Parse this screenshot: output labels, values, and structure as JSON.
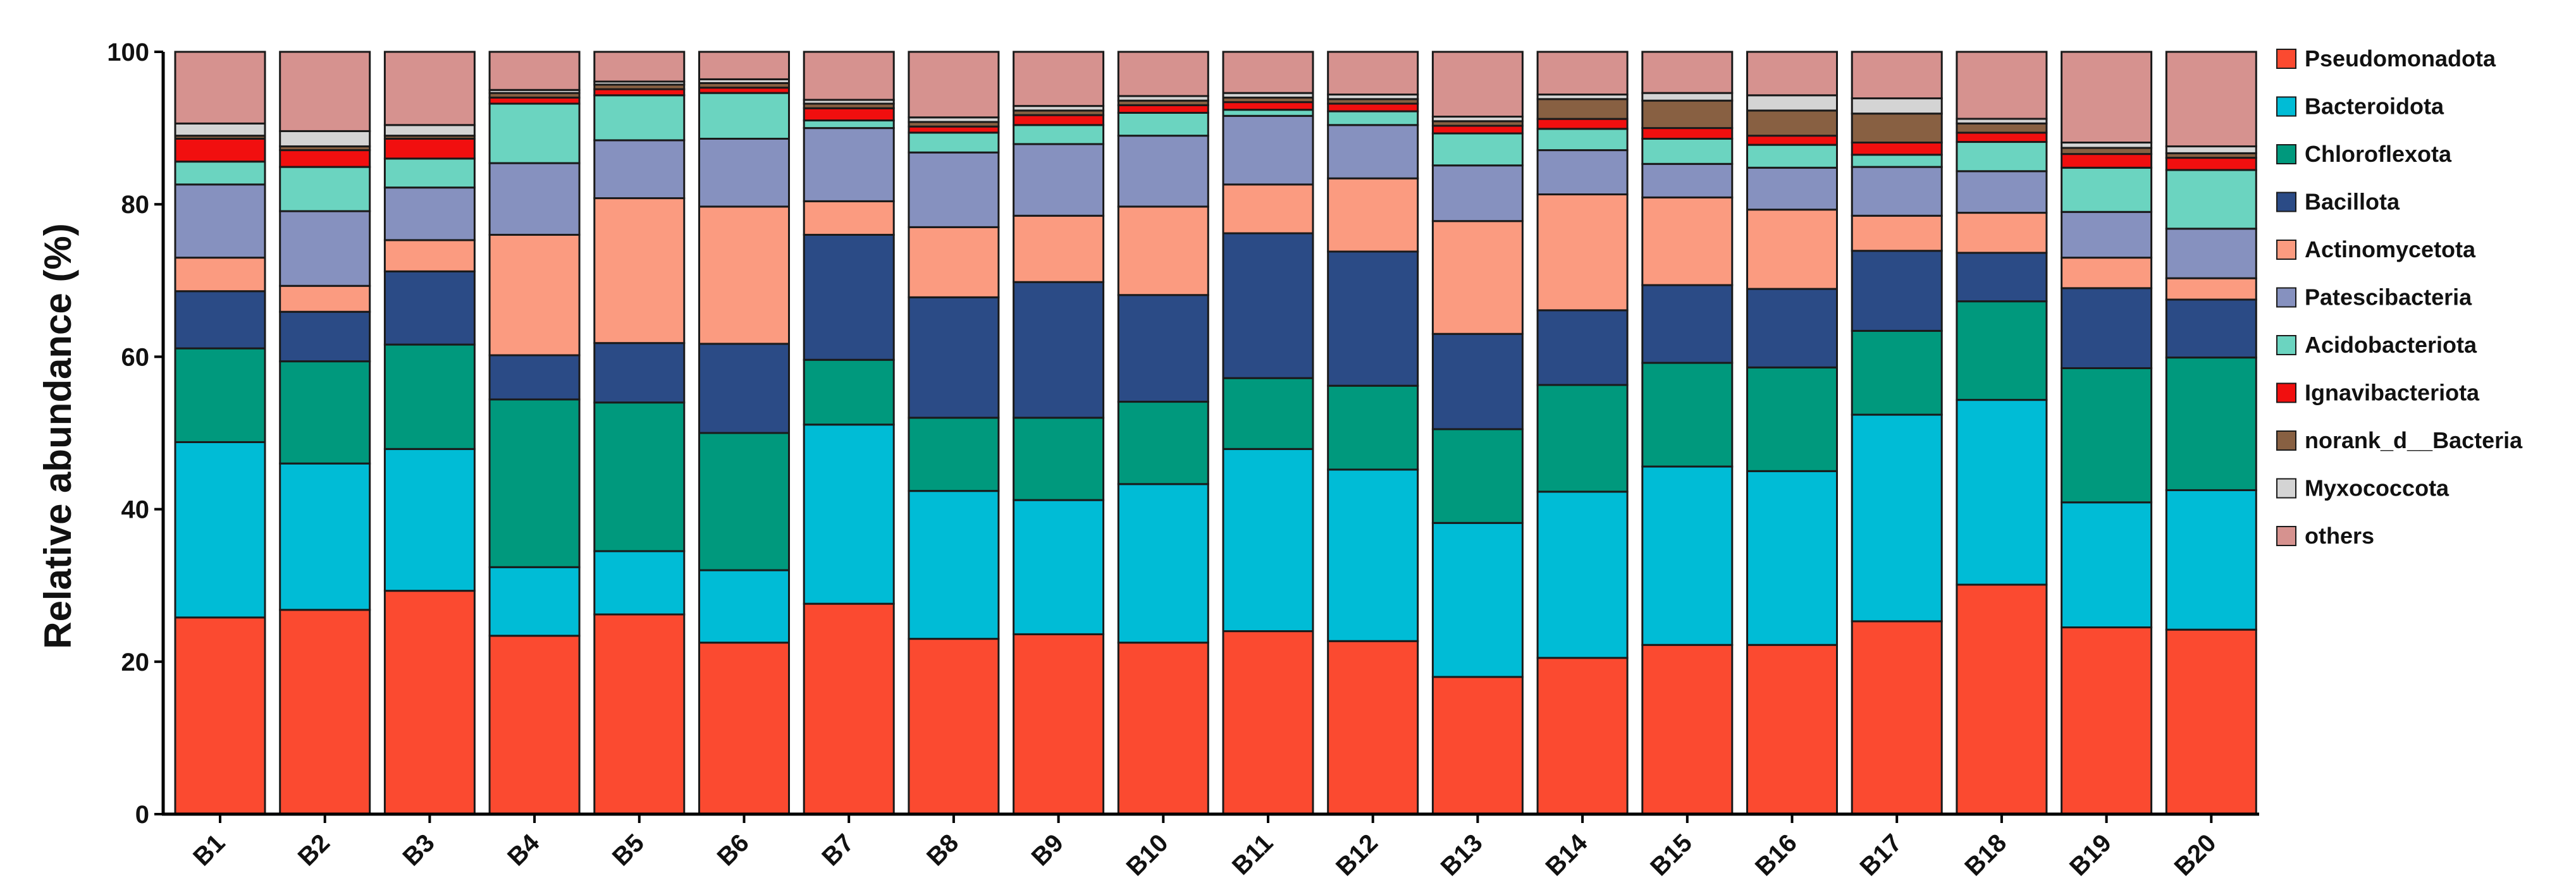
{
  "chart_data": {
    "type": "bar",
    "stacked": true,
    "title": "",
    "xlabel": "",
    "ylabel": "Relative abundance (%)",
    "ylim": [
      0,
      100
    ],
    "yticks": [
      "0",
      "20",
      "40",
      "60",
      "80",
      "100"
    ],
    "legend_position": "right",
    "categories": [
      "B1",
      "B2",
      "B3",
      "B4",
      "B5",
      "B6",
      "B7",
      "B8",
      "B9",
      "B10",
      "B11",
      "B12",
      "B13",
      "B14",
      "B15",
      "B16",
      "B17",
      "B18",
      "B19",
      "B20"
    ],
    "series": [
      {
        "name": "Pseudomonadota",
        "color": "#fb4a30",
        "values": [
          25.8,
          26.8,
          29.3,
          23.4,
          26.2,
          22.5,
          27.6,
          23.0,
          23.6,
          22.5,
          24.0,
          22.7,
          18.0,
          20.5,
          22.2,
          22.2,
          25.3,
          29.8,
          24.5,
          24.2
        ]
      },
      {
        "name": "Bacteroidota",
        "color": "#00bcd6",
        "values": [
          23.0,
          19.2,
          18.6,
          9.0,
          8.3,
          9.5,
          23.5,
          19.4,
          17.6,
          20.8,
          23.9,
          22.5,
          20.2,
          21.8,
          23.4,
          22.8,
          27.1,
          24.0,
          16.4,
          18.3
        ]
      },
      {
        "name": "Chloroflexota",
        "color": "#00997d",
        "values": [
          12.3,
          13.4,
          13.7,
          22.0,
          19.5,
          18.0,
          8.5,
          9.6,
          10.8,
          10.8,
          9.3,
          11.0,
          12.3,
          14.0,
          13.6,
          13.6,
          11.0,
          12.8,
          17.6,
          17.4
        ]
      },
      {
        "name": "Bacillota",
        "color": "#2b4b86",
        "values": [
          7.5,
          6.5,
          9.6,
          5.8,
          7.8,
          11.7,
          16.4,
          15.8,
          17.8,
          14.0,
          19.0,
          17.6,
          12.5,
          9.8,
          10.2,
          10.3,
          10.5,
          6.3,
          10.5,
          7.6
        ]
      },
      {
        "name": "Actinomycetota",
        "color": "#fb9b80",
        "values": [
          4.4,
          3.4,
          4.1,
          15.8,
          19.0,
          18.0,
          4.4,
          9.2,
          8.7,
          11.6,
          6.4,
          9.6,
          14.8,
          15.2,
          11.5,
          10.4,
          4.6,
          5.2,
          4.0,
          2.8
        ]
      },
      {
        "name": "Patescibacteria",
        "color": "#8691bf",
        "values": [
          9.6,
          9.8,
          6.9,
          9.4,
          7.6,
          8.9,
          9.6,
          9.8,
          9.4,
          9.3,
          9.0,
          7.0,
          7.3,
          5.8,
          4.4,
          5.5,
          6.4,
          5.4,
          6.0,
          6.5
        ]
      },
      {
        "name": "Acidobacteriota",
        "color": "#6bd4c0",
        "values": [
          3.0,
          5.8,
          3.8,
          7.8,
          5.9,
          6.0,
          1.0,
          2.6,
          2.5,
          3.0,
          0.8,
          1.8,
          4.2,
          2.8,
          3.3,
          3.0,
          1.6,
          3.8,
          5.8,
          7.7
        ]
      },
      {
        "name": "Ignavibacteriota",
        "color": "#f10f0f",
        "values": [
          3.0,
          2.2,
          2.6,
          0.8,
          0.8,
          0.7,
          1.6,
          0.8,
          1.3,
          1.0,
          1.0,
          1.0,
          1.0,
          1.3,
          1.4,
          1.2,
          1.6,
          1.2,
          1.8,
          1.6
        ]
      },
      {
        "name": "norank_d__Bacteria",
        "color": "#886042",
        "values": [
          0.4,
          0.5,
          0.4,
          0.6,
          0.6,
          0.6,
          0.6,
          0.6,
          0.6,
          0.6,
          0.6,
          0.6,
          0.6,
          2.6,
          3.6,
          3.3,
          3.8,
          1.2,
          0.8,
          0.6
        ]
      },
      {
        "name": "Myxococcota",
        "color": "#d4d4d4",
        "values": [
          1.6,
          2.0,
          1.4,
          0.4,
          0.4,
          0.5,
          0.5,
          0.6,
          0.6,
          0.6,
          0.6,
          0.6,
          0.6,
          0.6,
          1.0,
          2.0,
          2.0,
          0.6,
          0.7,
          0.9
        ]
      },
      {
        "name": "others",
        "color": "#d6928f",
        "values": [
          9.4,
          10.4,
          9.6,
          5.0,
          3.9,
          3.6,
          6.3,
          8.6,
          7.1,
          5.8,
          5.4,
          5.6,
          8.5,
          5.6,
          5.4,
          5.7,
          6.1,
          8.7,
          11.9,
          12.4
        ]
      }
    ]
  }
}
